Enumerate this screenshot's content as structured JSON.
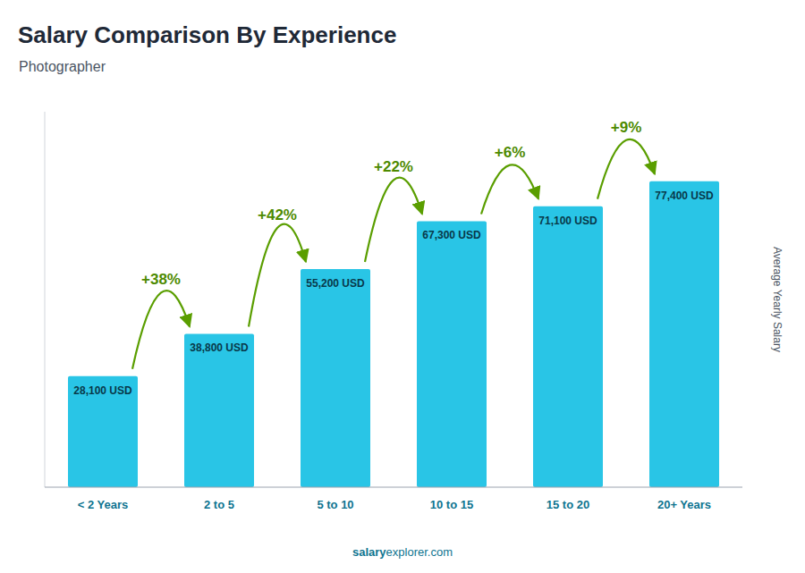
{
  "chart_data": {
    "type": "bar",
    "title": "Salary Comparison By Experience",
    "subtitle": "Photographer",
    "ylabel": "Average Yearly Salary",
    "categories": [
      "< 2 Years",
      "2 to 5",
      "5 to 10",
      "10 to 15",
      "15 to 20",
      "20+ Years"
    ],
    "values": [
      28100,
      38800,
      55200,
      67300,
      71100,
      77400
    ],
    "value_labels": [
      "28,100 USD",
      "38,800 USD",
      "55,200 USD",
      "67,300 USD",
      "71,100 USD",
      "77,400 USD"
    ],
    "data_labels": true,
    "annotations": [
      "+38%",
      "+42%",
      "+22%",
      "+6%",
      "+9%"
    ],
    "watermark": [
      "salary",
      "explorer.com"
    ],
    "color": "#29c5e6",
    "ylim": [
      0,
      95000
    ],
    "tick_labels": "x",
    "grid": false
  }
}
